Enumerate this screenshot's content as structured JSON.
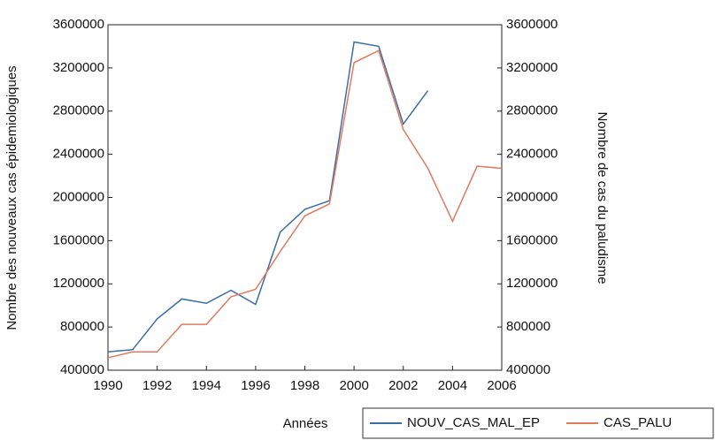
{
  "chart_data": {
    "type": "line",
    "x_label": "Années",
    "y_label": "Nombre des nouveaux cas épidemiologiques",
    "y2_label": "Nombre de cas du paludisme",
    "x": [
      1990,
      1991,
      1992,
      1993,
      1994,
      1995,
      1996,
      1997,
      1998,
      1999,
      2000,
      2001,
      2002,
      2003,
      2004,
      2005,
      2006
    ],
    "xlim": [
      1990,
      2006
    ],
    "xticks": [
      1990,
      1992,
      1994,
      1996,
      1998,
      2000,
      2002,
      2004,
      2006
    ],
    "ylim": [
      400000,
      3600000
    ],
    "yticks": [
      400000,
      800000,
      1200000,
      1600000,
      2000000,
      2400000,
      2800000,
      3200000,
      3600000
    ],
    "y2lim": [
      400000,
      3600000
    ],
    "y2ticks": [
      400000,
      800000,
      1200000,
      1600000,
      2000000,
      2400000,
      2800000,
      3200000,
      3600000
    ],
    "series": [
      {
        "name": "NOUV_CAS_MAL_EP",
        "color": "#3a6ea5",
        "values": [
          570000,
          590000,
          875000,
          1060000,
          1020000,
          1140000,
          1010000,
          1680000,
          1890000,
          1970000,
          3440000,
          3400000,
          2680000,
          2990000,
          null,
          null,
          null
        ]
      },
      {
        "name": "CAS_PALU",
        "color": "#e07a5f",
        "axis": "y2",
        "values": [
          515000,
          570000,
          570000,
          825000,
          825000,
          1080000,
          1150000,
          1500000,
          1830000,
          1940000,
          3250000,
          3360000,
          2630000,
          2270000,
          1780000,
          2290000,
          2270000
        ]
      }
    ]
  }
}
